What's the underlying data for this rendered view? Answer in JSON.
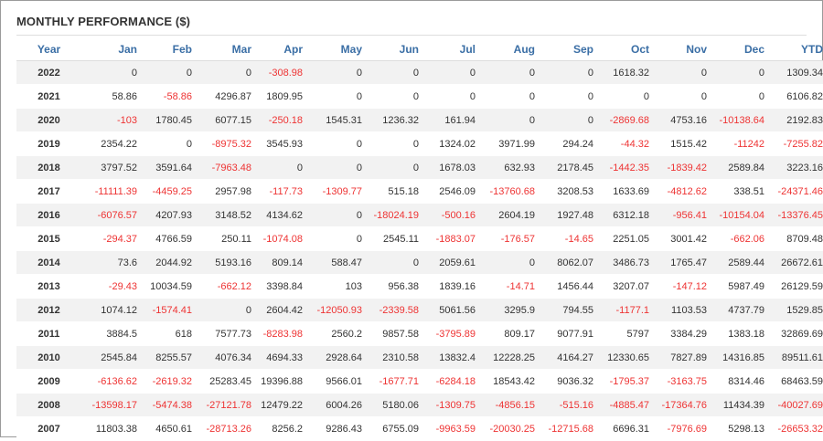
{
  "title": "MONTHLY PERFORMANCE ($)",
  "colors": {
    "header_text": "#3a6ea5",
    "negative": "#ee3333",
    "text": "#333333",
    "stripe": "#f2f2f2"
  },
  "columns": [
    "Year",
    "Jan",
    "Feb",
    "Mar",
    "Apr",
    "May",
    "Jun",
    "Jul",
    "Aug",
    "Sep",
    "Oct",
    "Nov",
    "Dec",
    "YTD"
  ],
  "rows": [
    [
      "2022",
      "0",
      "0",
      "0",
      "-308.98",
      "0",
      "0",
      "0",
      "0",
      "0",
      "1618.32",
      "0",
      "0",
      "1309.34"
    ],
    [
      "2021",
      "58.86",
      "-58.86",
      "4296.87",
      "1809.95",
      "0",
      "0",
      "0",
      "0",
      "0",
      "0",
      "0",
      "0",
      "6106.82"
    ],
    [
      "2020",
      "-103",
      "1780.45",
      "6077.15",
      "-250.18",
      "1545.31",
      "1236.32",
      "161.94",
      "0",
      "0",
      "-2869.68",
      "4753.16",
      "-10138.64",
      "2192.83"
    ],
    [
      "2019",
      "2354.22",
      "0",
      "-8975.32",
      "3545.93",
      "0",
      "0",
      "1324.02",
      "3971.99",
      "294.24",
      "-44.32",
      "1515.42",
      "-11242",
      "-7255.82"
    ],
    [
      "2018",
      "3797.52",
      "3591.64",
      "-7963.48",
      "0",
      "0",
      "0",
      "1678.03",
      "632.93",
      "2178.45",
      "-1442.35",
      "-1839.42",
      "2589.84",
      "3223.16"
    ],
    [
      "2017",
      "-11111.39",
      "-4459.25",
      "2957.98",
      "-117.73",
      "-1309.77",
      "515.18",
      "2546.09",
      "-13760.68",
      "3208.53",
      "1633.69",
      "-4812.62",
      "338.51",
      "-24371.46"
    ],
    [
      "2016",
      "-6076.57",
      "4207.93",
      "3148.52",
      "4134.62",
      "0",
      "-18024.19",
      "-500.16",
      "2604.19",
      "1927.48",
      "6312.18",
      "-956.41",
      "-10154.04",
      "-13376.45"
    ],
    [
      "2015",
      "-294.37",
      "4766.59",
      "250.11",
      "-1074.08",
      "0",
      "2545.11",
      "-1883.07",
      "-176.57",
      "-14.65",
      "2251.05",
      "3001.42",
      "-662.06",
      "8709.48"
    ],
    [
      "2014",
      "73.6",
      "2044.92",
      "5193.16",
      "809.14",
      "588.47",
      "0",
      "2059.61",
      "0",
      "8062.07",
      "3486.73",
      "1765.47",
      "2589.44",
      "26672.61"
    ],
    [
      "2013",
      "-29.43",
      "10034.59",
      "-662.12",
      "3398.84",
      "103",
      "956.38",
      "1839.16",
      "-14.71",
      "1456.44",
      "3207.07",
      "-147.12",
      "5987.49",
      "26129.59"
    ],
    [
      "2012",
      "1074.12",
      "-1574.41",
      "0",
      "2604.42",
      "-12050.93",
      "-2339.58",
      "5061.56",
      "3295.9",
      "794.55",
      "-1177.1",
      "1103.53",
      "4737.79",
      "1529.85"
    ],
    [
      "2011",
      "3884.5",
      "618",
      "7577.73",
      "-8283.98",
      "2560.2",
      "9857.58",
      "-3795.89",
      "809.17",
      "9077.91",
      "5797",
      "3384.29",
      "1383.18",
      "32869.69"
    ],
    [
      "2010",
      "2545.84",
      "8255.57",
      "4076.34",
      "4694.33",
      "2928.64",
      "2310.58",
      "13832.4",
      "12228.25",
      "4164.27",
      "12330.65",
      "7827.89",
      "14316.85",
      "89511.61"
    ],
    [
      "2009",
      "-6136.62",
      "-2619.32",
      "25283.45",
      "19396.88",
      "9566.01",
      "-1677.71",
      "-6284.18",
      "18543.42",
      "9036.32",
      "-1795.37",
      "-3163.75",
      "8314.46",
      "68463.59"
    ],
    [
      "2008",
      "-13598.17",
      "-5474.38",
      "-27121.78",
      "12479.22",
      "6004.26",
      "5180.06",
      "-1309.75",
      "-4856.15",
      "-515.16",
      "-4885.47",
      "-17364.76",
      "11434.39",
      "-40027.69"
    ],
    [
      "2007",
      "11803.38",
      "4650.61",
      "-28713.26",
      "8256.2",
      "9286.43",
      "6755.09",
      "-9963.59",
      "-20030.25",
      "-12715.68",
      "6696.31",
      "-7976.69",
      "5298.13",
      "-26653.32"
    ]
  ]
}
